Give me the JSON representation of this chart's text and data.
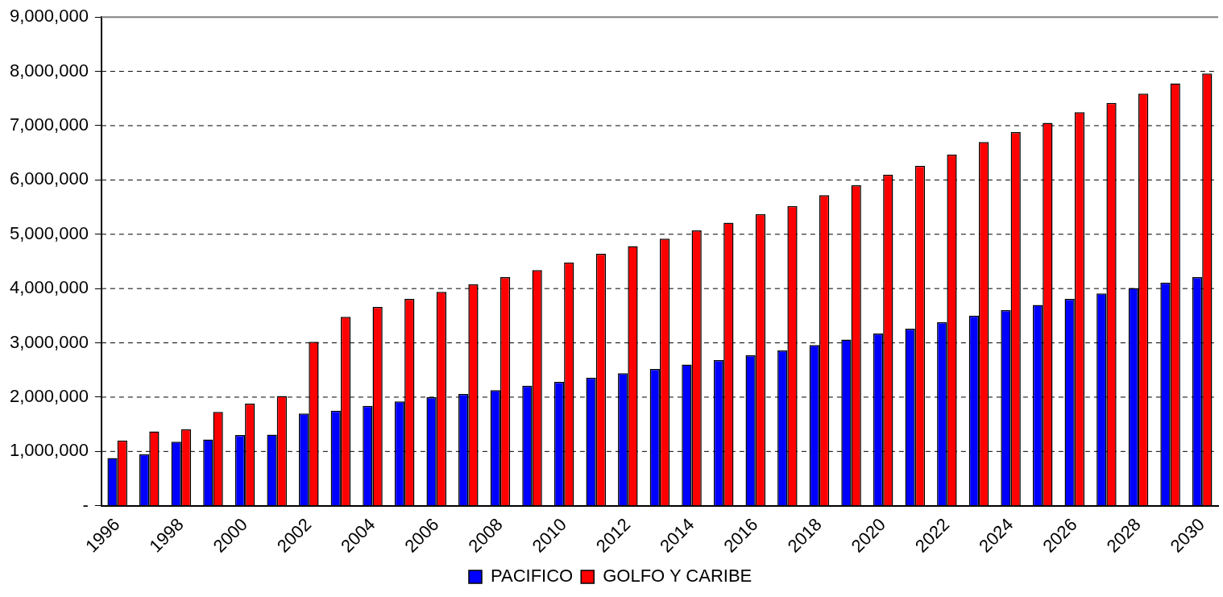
{
  "chart_data": {
    "type": "bar",
    "categories": [
      "1996",
      null,
      "1998",
      null,
      "2000",
      null,
      "2002",
      null,
      "2004",
      null,
      "2006",
      null,
      "2008",
      null,
      "2010",
      null,
      "2012",
      null,
      "2014",
      null,
      "2016",
      null,
      "2018",
      null,
      "2020",
      null,
      "2022",
      null,
      "2024",
      null,
      "2026",
      null,
      "2028",
      null,
      "2030"
    ],
    "series": [
      {
        "name": "PACIFICO",
        "color": "#0000ff",
        "values": [
          880000,
          950000,
          1180000,
          1220000,
          1300000,
          1310000,
          1700000,
          1750000,
          1840000,
          1920000,
          2000000,
          2060000,
          2130000,
          2210000,
          2280000,
          2360000,
          2440000,
          2520000,
          2600000,
          2680000,
          2770000,
          2860000,
          2960000,
          3060000,
          3170000,
          3260000,
          3380000,
          3500000,
          3600000,
          3700000,
          3810000,
          3910000,
          4010000,
          4110000,
          4210000
        ]
      },
      {
        "name": "GOLFO Y CARIBE",
        "color": "#ff0000",
        "values": [
          1200000,
          1370000,
          1410000,
          1730000,
          1880000,
          2020000,
          3020000,
          3480000,
          3660000,
          3810000,
          3940000,
          4080000,
          4210000,
          4340000,
          4480000,
          4640000,
          4780000,
          4920000,
          5070000,
          5210000,
          5370000,
          5520000,
          5720000,
          5900000,
          6100000,
          6260000,
          6470000,
          6700000,
          6880000,
          7050000,
          7250000,
          7420000,
          7590000,
          7780000,
          7960000
        ]
      }
    ],
    "ylim": [
      0,
      9000000
    ],
    "yticks": [
      {
        "value": 0,
        "label": "-"
      },
      {
        "value": 1000000,
        "label": "1,000,000"
      },
      {
        "value": 2000000,
        "label": "2,000,000"
      },
      {
        "value": 3000000,
        "label": "3,000,000"
      },
      {
        "value": 4000000,
        "label": "4,000,000"
      },
      {
        "value": 5000000,
        "label": "5,000,000"
      },
      {
        "value": 6000000,
        "label": "6,000,000"
      },
      {
        "value": 7000000,
        "label": "7,000,000"
      },
      {
        "value": 8000000,
        "label": "8,000,000"
      },
      {
        "value": 9000000,
        "label": "9,000,000"
      }
    ],
    "grid": "y",
    "legend": "bottom"
  }
}
